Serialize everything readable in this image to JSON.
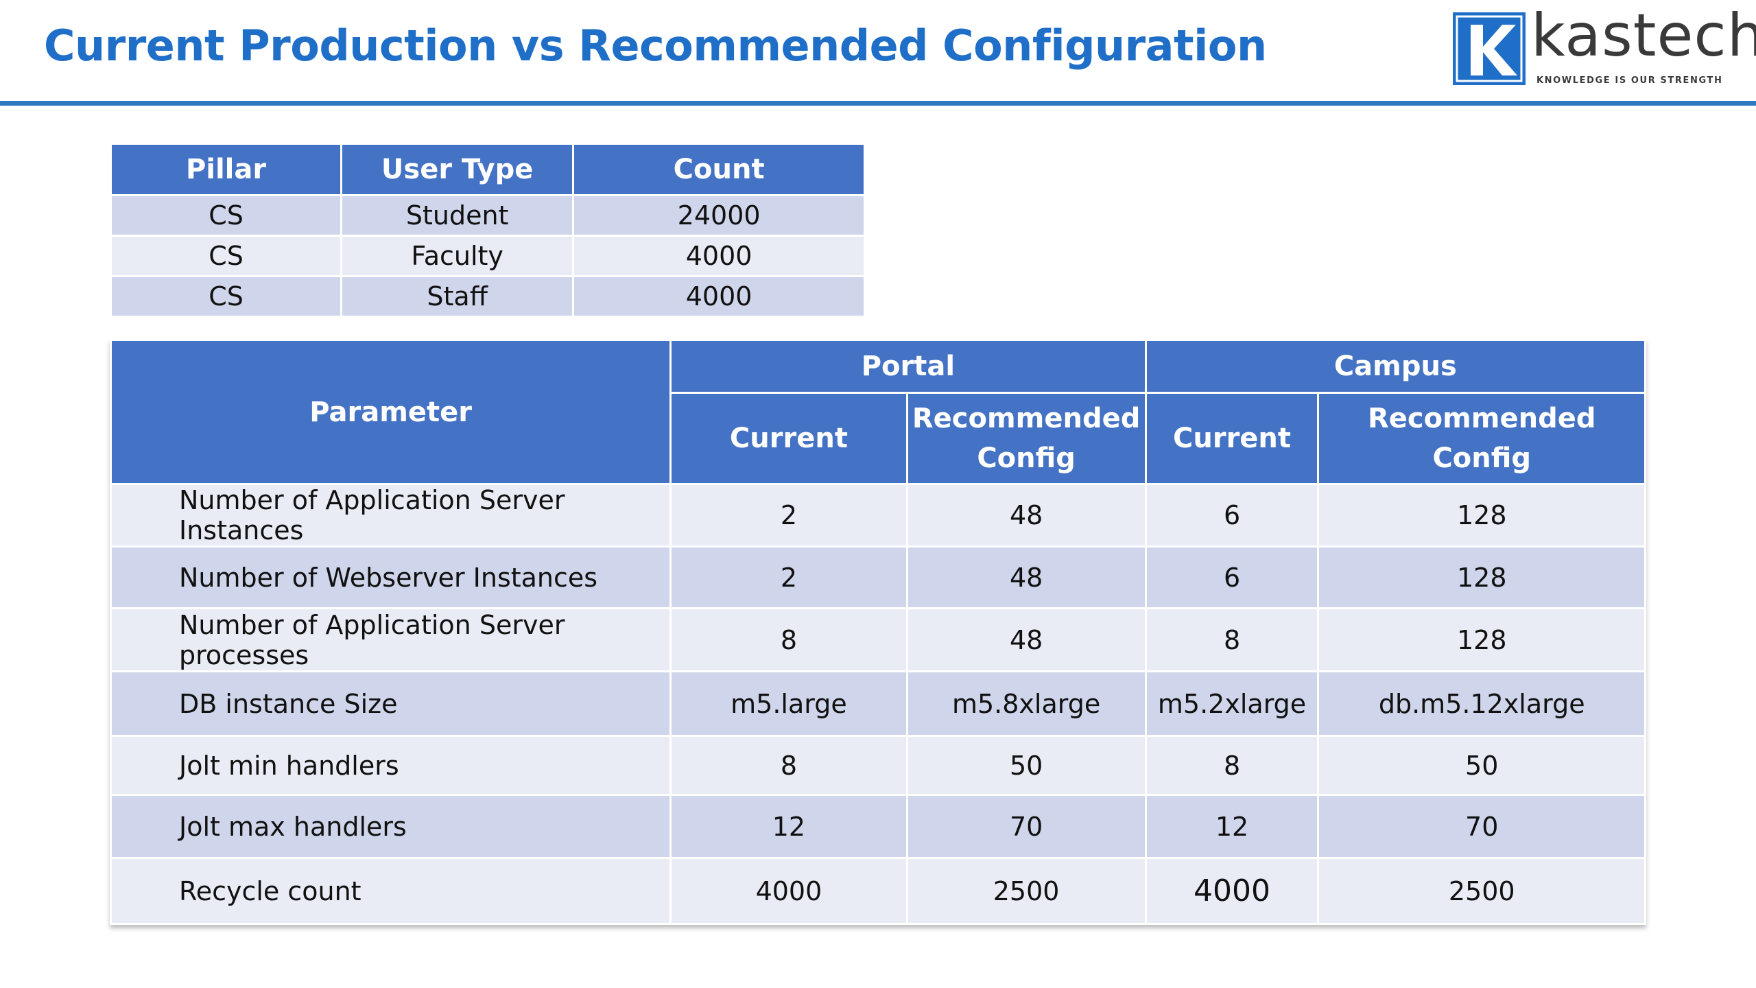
{
  "title": "Current Production vs Recommended Configuration",
  "logo": {
    "name": "kastech",
    "tagline": "KNOWLEDGE IS OUR STRENGTH",
    "mark_letter": "K",
    "brand_blue": "#1f6ec7"
  },
  "colors": {
    "header_blue": "#4472c4",
    "row_dark": "#cfd5ea",
    "row_light": "#e9ebf5",
    "title_blue": "#1f6ec7"
  },
  "user_table": {
    "headers": [
      "Pillar",
      "User Type",
      "Count"
    ],
    "rows": [
      [
        "CS",
        "Student",
        "24000"
      ],
      [
        "CS",
        "Faculty",
        "4000"
      ],
      [
        "CS",
        "Staff",
        "4000"
      ]
    ]
  },
  "config_table": {
    "parameter_header": "Parameter",
    "groups": [
      "Portal",
      "Campus"
    ],
    "subheaders": [
      "Current",
      "Recommended Config",
      "Current",
      "Recommended Config"
    ],
    "rows": [
      [
        "Number of Application Server Instances",
        "2",
        "48",
        "6",
        "128"
      ],
      [
        "Number of Webserver Instances",
        "2",
        "48",
        "6",
        "128"
      ],
      [
        "Number of Application Server processes",
        "8",
        "48",
        "8",
        "128"
      ],
      [
        "DB instance Size",
        "m5.large",
        "m5.8xlarge",
        "m5.2xlarge",
        "db.m5.12xlarge"
      ],
      [
        "Jolt min handlers",
        "8",
        "50",
        "8",
        "50"
      ],
      [
        "Jolt max handlers",
        "12",
        "70",
        "12",
        "70"
      ],
      [
        "Recycle count",
        "4000",
        "2500",
        "4000",
        "2500"
      ]
    ]
  }
}
